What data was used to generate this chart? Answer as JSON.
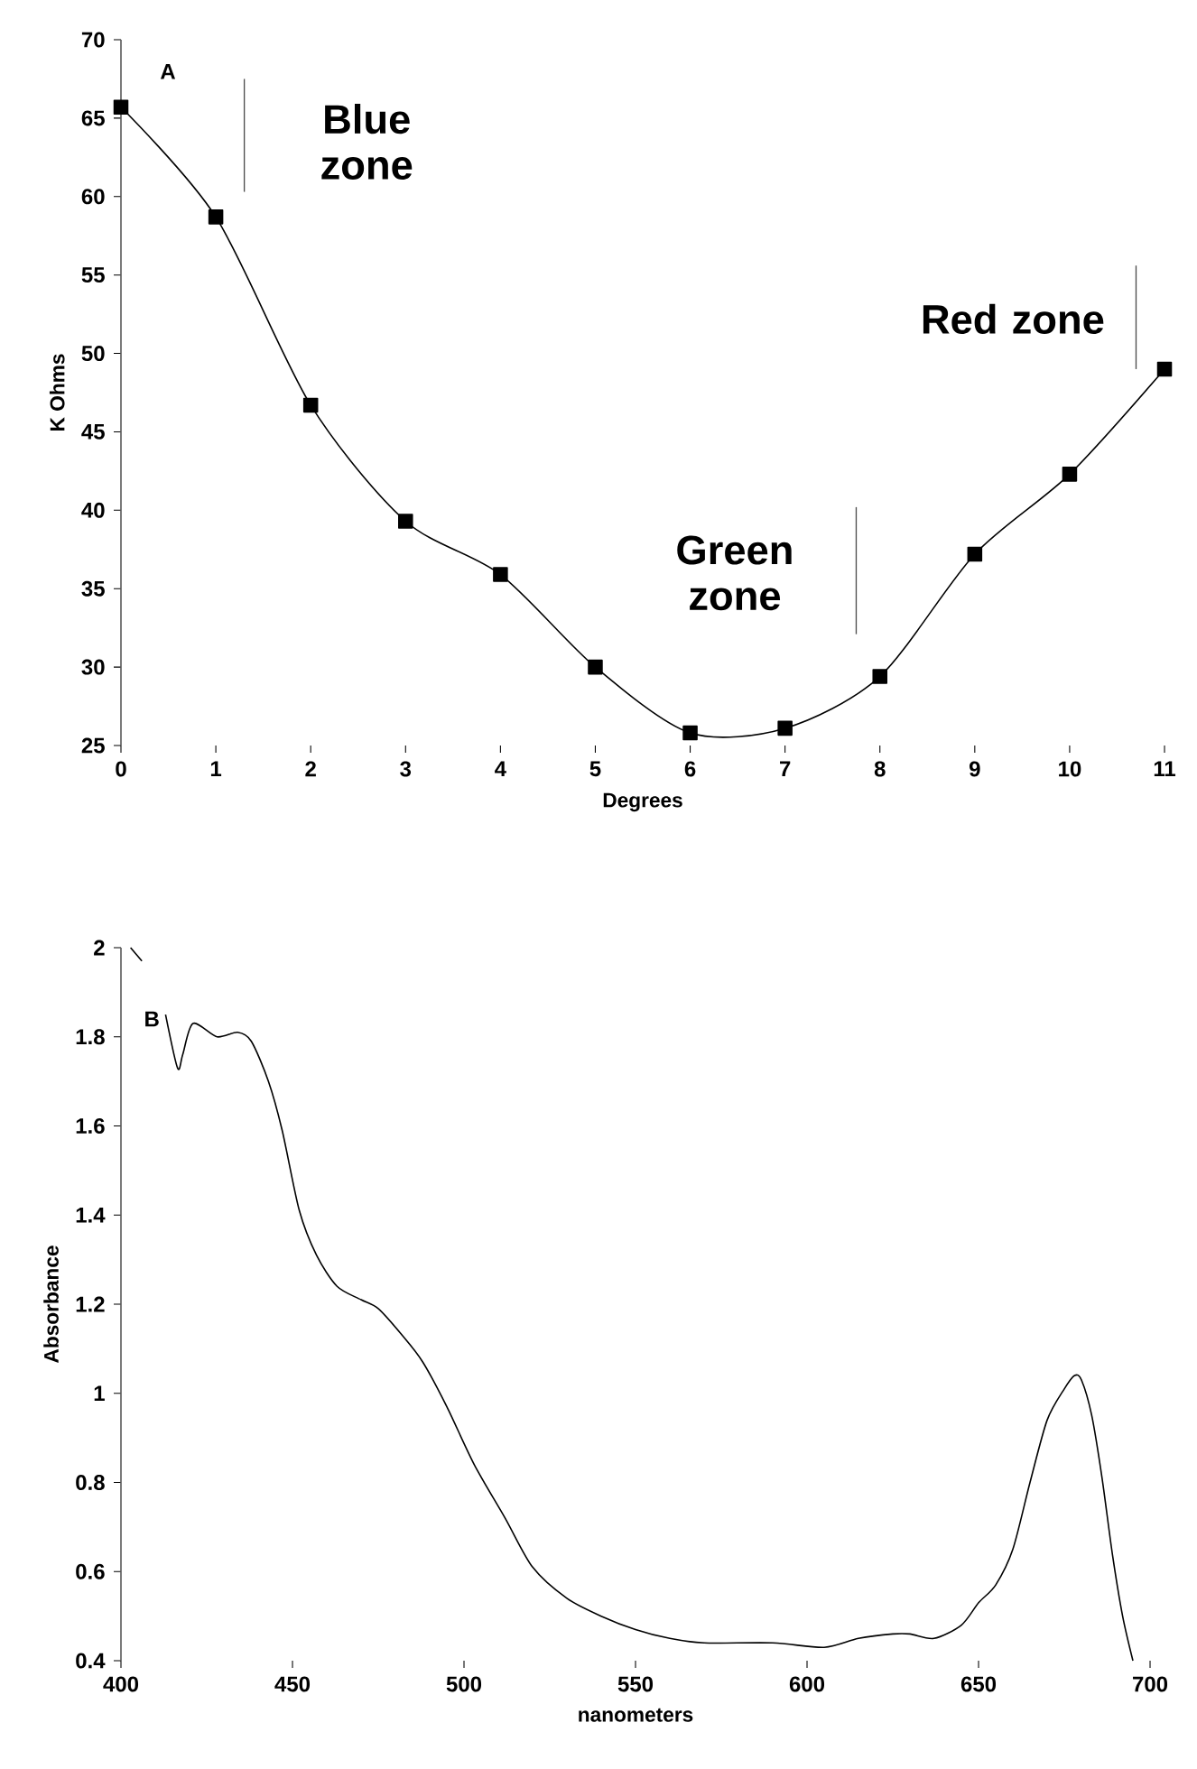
{
  "chart_data": [
    {
      "type": "line",
      "xlabel": "Degrees",
      "ylabel": "K Ohms",
      "annotations": [
        "A"
      ],
      "ref_lines": [
        {
          "axis": "x",
          "value": 1.3,
          "label": "Blue zone",
          "color": "#4c4c4c"
        },
        {
          "axis": "x",
          "value": 7.75,
          "label": "Green zone",
          "color": "#4c4c4c"
        },
        {
          "axis": "x",
          "value": 10.7,
          "label": "Red zone",
          "color": "#4c4c4c"
        }
      ],
      "x": [
        0,
        1,
        2,
        3,
        4,
        5,
        6,
        7,
        8,
        9,
        10,
        11
      ],
      "series": [
        {
          "color": "#000000",
          "values": [
            65.7,
            58.7,
            46.7,
            39.3,
            35.9,
            30,
            25.8,
            26.1,
            29.4,
            37.2,
            42.3,
            49
          ]
        }
      ],
      "xlim": [
        0,
        11
      ],
      "xticks": [
        0,
        1,
        2,
        3,
        4,
        5,
        6,
        7,
        8,
        9,
        10,
        11
      ],
      "ylim": [
        25,
        70
      ],
      "yticks": [
        25,
        30,
        35,
        40,
        45,
        50,
        55,
        60,
        65,
        70
      ],
      "marker": "square"
    },
    {
      "type": "line",
      "xlabel": "nanometers",
      "ylabel": "Absorbance",
      "annotations": [
        "B"
      ],
      "x": [
        402.8,
        406.1,
        410,
        413,
        416.5,
        418,
        421,
        428,
        434,
        438,
        443,
        447,
        452,
        457,
        463,
        470,
        475,
        482,
        488,
        495,
        503,
        512,
        520,
        530,
        540,
        550,
        560,
        570,
        590,
        605,
        615,
        625,
        630,
        637,
        645,
        650,
        655,
        660,
        665,
        670,
        675,
        678,
        680,
        683,
        686,
        689,
        692,
        695
      ],
      "series": [
        {
          "color": "#000000",
          "values": [
            2.0,
            1.97,
            null,
            1.85,
            1.73,
            1.76,
            1.83,
            1.8,
            1.81,
            1.79,
            1.7,
            1.59,
            1.41,
            1.31,
            1.24,
            1.21,
            1.19,
            1.13,
            1.07,
            0.97,
            0.84,
            0.72,
            0.61,
            0.54,
            0.5,
            0.47,
            0.45,
            0.44,
            0.44,
            0.43,
            0.45,
            0.46,
            0.46,
            0.45,
            0.48,
            0.53,
            0.57,
            0.65,
            0.8,
            0.94,
            1.01,
            1.04,
            1.03,
            0.95,
            0.81,
            0.64,
            0.5,
            0.4
          ]
        }
      ],
      "xlim": [
        400,
        700
      ],
      "xticks": [
        400,
        450,
        500,
        550,
        600,
        650,
        700
      ],
      "ylim": [
        0.4,
        2
      ],
      "yticks": [
        0.4,
        0.6,
        0.8,
        1,
        1.2,
        1.4,
        1.6,
        1.8,
        2
      ],
      "marker": "none"
    }
  ]
}
